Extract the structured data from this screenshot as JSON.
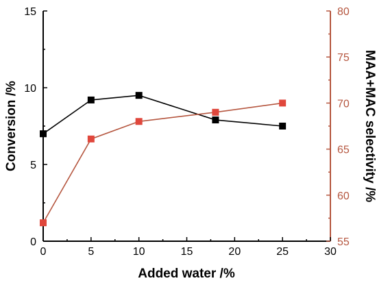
{
  "chart_data": {
    "type": "line",
    "xlabel": "Added water /%",
    "ylabel": "Conversion /%",
    "y2label": "MAA+MAC selectivity /%",
    "xlim": [
      0,
      30
    ],
    "ylim": [
      0,
      15
    ],
    "y2lim": [
      55,
      80
    ],
    "x_ticks": [
      "0",
      "5",
      "10",
      "15",
      "20",
      "25",
      "30"
    ],
    "y_ticks": [
      "0",
      "5",
      "10",
      "15"
    ],
    "y2_ticks": [
      "55",
      "60",
      "65",
      "70",
      "75",
      "80"
    ],
    "grid": false,
    "legend": "none",
    "series": [
      {
        "axis": "left",
        "color": "#000000",
        "marker": "square",
        "x": [
          0,
          5,
          10,
          18,
          25
        ],
        "y": [
          7.0,
          9.2,
          9.5,
          7.9,
          7.5
        ]
      },
      {
        "axis": "right",
        "color": "#b5563f",
        "marker_color": "#e0473c",
        "marker": "square",
        "x": [
          0,
          5,
          10,
          18,
          25
        ],
        "y": [
          57.0,
          66.1,
          68.0,
          69.0,
          70.0
        ]
      }
    ]
  }
}
